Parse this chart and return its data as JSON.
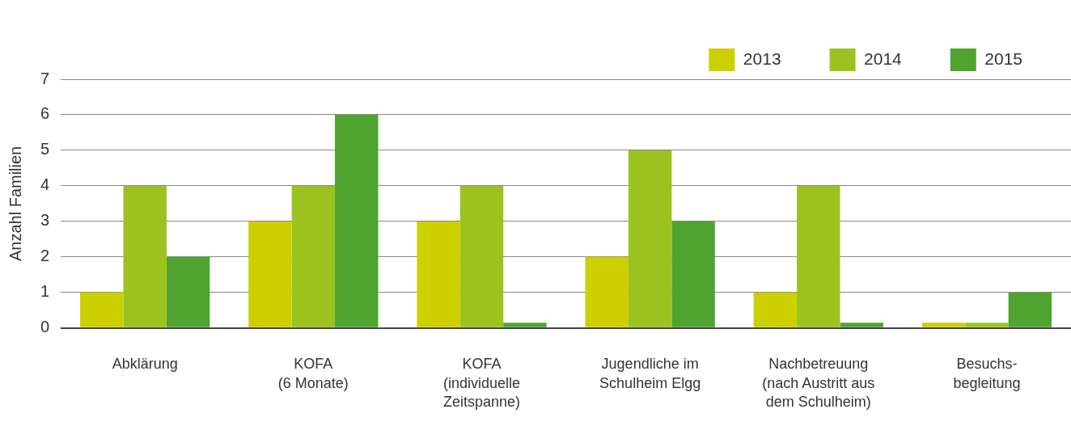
{
  "chart_data": {
    "type": "bar",
    "ylabel": "Anzahl Familien",
    "categories": [
      "Abklärung",
      "KOFA\n(6 Monate)",
      "KOFA\n(individuelle\nZeitspanne)",
      "Jugendliche im\nSchulheim Elgg",
      "Nachbetreuung\n(nach Austritt aus\ndem Schulheim)",
      "Besuchs-\nbegleitung"
    ],
    "series": [
      {
        "name": "2013",
        "color": "#ccd000",
        "values": [
          1,
          3,
          3,
          2,
          1,
          0.15
        ]
      },
      {
        "name": "2014",
        "color": "#9cc220",
        "values": [
          4,
          4,
          4,
          5,
          4,
          0.15
        ]
      },
      {
        "name": "2015",
        "color": "#4fa42f",
        "values": [
          2,
          6,
          0.15,
          3,
          0.15,
          1
        ]
      }
    ],
    "ylim": [
      0,
      7
    ],
    "yticks": [
      0,
      1,
      2,
      3,
      4,
      5,
      6,
      7
    ],
    "grid": "y",
    "legend": "top right"
  }
}
